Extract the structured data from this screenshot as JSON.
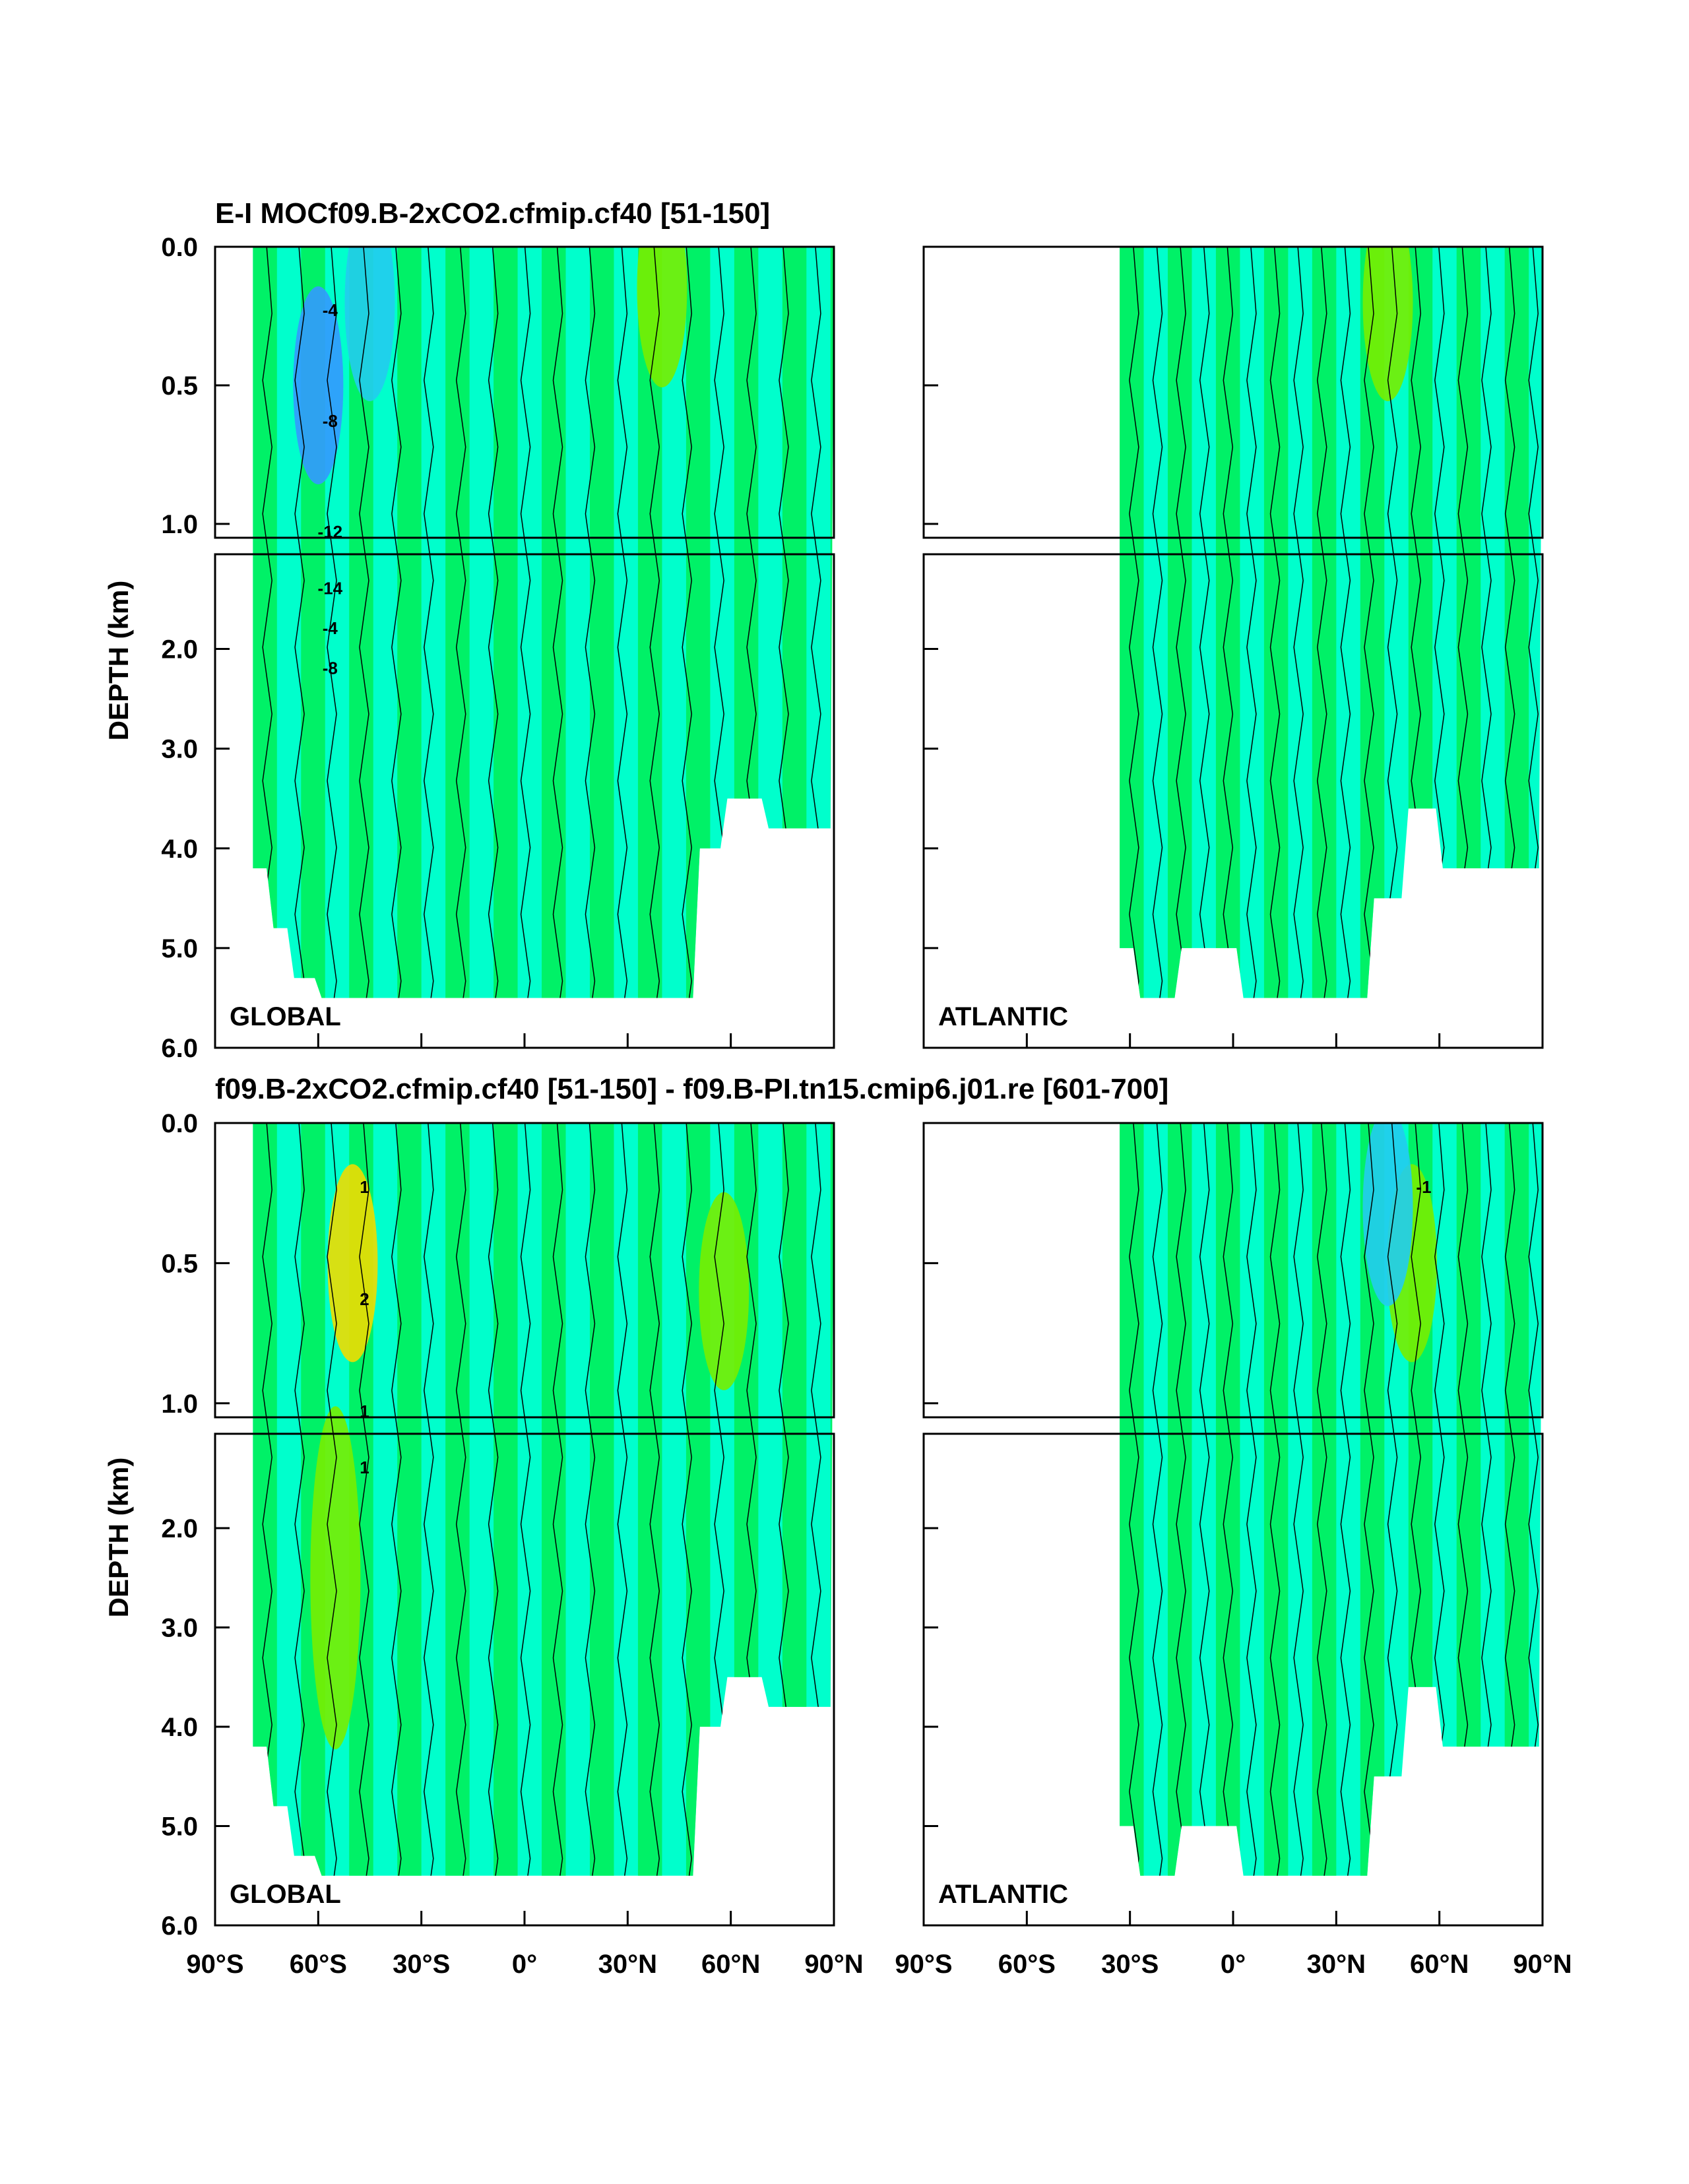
{
  "chart_data": [
    {
      "type": "heatmap",
      "title": "E-I MOCf09.B-2xCO2.cfmip.cf40 [51-150]",
      "ylabel": "DEPTH (km)",
      "ylim": [
        6.0,
        0.0
      ],
      "upper_ticks": [
        "0.0",
        "0.5",
        "1.0"
      ],
      "lower_ticks": [
        "2.0",
        "3.0",
        "4.0",
        "5.0",
        "6.0"
      ],
      "xlim": [
        -90,
        90
      ],
      "panels": [
        {
          "region": "GLOBAL",
          "lat_start": -79,
          "contour_labels": [
            "-4",
            "-8",
            "-12",
            "-14",
            "-4",
            "-8"
          ],
          "fields": [
            {
              "lat": -60,
              "depth": 0.5,
              "level": "strong-negative"
            },
            {
              "lat": -45,
              "depth": 0.2,
              "level": "negative"
            },
            {
              "lat": 40,
              "depth": 0.15,
              "level": "positive"
            }
          ]
        },
        {
          "region": "ATLANTIC",
          "lat_start": -33,
          "contour_labels": [],
          "fields": [
            {
              "lat": 45,
              "depth": 0.2,
              "level": "positive"
            }
          ]
        }
      ]
    },
    {
      "type": "heatmap",
      "title": "f09.B-2xCO2.cfmip.cf40 [51-150] - f09.B-PI.tn15.cmip6.j01.re [601-700]",
      "ylabel": "DEPTH (km)",
      "ylim": [
        6.0,
        0.0
      ],
      "upper_ticks": [
        "0.0",
        "0.5",
        "1.0"
      ],
      "lower_ticks": [
        "2.0",
        "3.0",
        "4.0",
        "5.0",
        "6.0"
      ],
      "xlim": [
        -90,
        90
      ],
      "x_ticks": [
        "90°S",
        "60°S",
        "30°S",
        "0°",
        "30°N",
        "60°N",
        "90°N"
      ],
      "panels": [
        {
          "region": "GLOBAL",
          "lat_start": -79,
          "contour_labels": [
            "1",
            "2",
            "1",
            "1"
          ],
          "fields": [
            {
              "lat": -50,
              "depth": 0.5,
              "level": "strong-positive"
            },
            {
              "lat": -55,
              "depth": 2.5,
              "level": "positive"
            },
            {
              "lat": 58,
              "depth": 0.6,
              "level": "positive"
            }
          ]
        },
        {
          "region": "ATLANTIC",
          "lat_start": -33,
          "contour_labels": [
            "-1"
          ],
          "fields": [
            {
              "lat": 52,
              "depth": 0.5,
              "level": "positive"
            },
            {
              "lat": 45,
              "depth": 0.3,
              "level": "negative"
            }
          ]
        }
      ]
    }
  ],
  "colors": {
    "strong_negative": "#3399ff",
    "negative": "#22ccee",
    "weak_negative": "#00ffcc",
    "weak_positive": "#00ee55",
    "positive": "#77ee00",
    "strong_positive": "#eedd00"
  }
}
